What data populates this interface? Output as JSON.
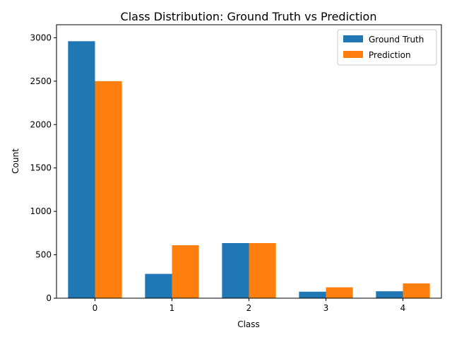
{
  "chart_data": {
    "type": "bar",
    "title": "Class Distribution: Ground Truth vs Prediction",
    "xlabel": "Class",
    "ylabel": "Count",
    "categories": [
      "0",
      "1",
      "2",
      "3",
      "4"
    ],
    "series": [
      {
        "name": "Ground Truth",
        "color": "#1f77b4",
        "values": [
          2960,
          280,
          635,
          75,
          80
        ]
      },
      {
        "name": "Prediction",
        "color": "#ff7f0e",
        "values": [
          2500,
          610,
          635,
          125,
          170
        ]
      }
    ],
    "ylim": [
      0,
      3150
    ],
    "yticks": [
      0,
      500,
      1000,
      1500,
      2000,
      2500,
      3000
    ],
    "grid": false,
    "legend_position": "upper right"
  }
}
